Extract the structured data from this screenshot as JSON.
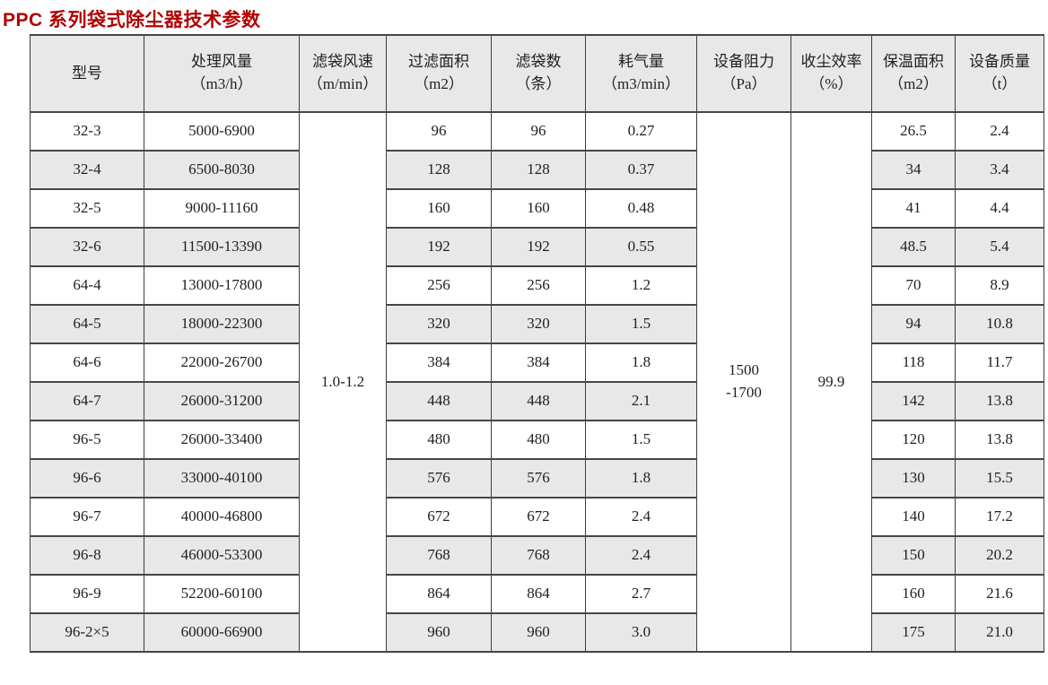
{
  "title": "PPC 系列袋式除尘器技术参数",
  "table": {
    "headers": [
      {
        "line1": "型号",
        "line2": ""
      },
      {
        "line1": "处理风量",
        "line2": "（m3/h）"
      },
      {
        "line1": "滤袋风速",
        "line2": "（m/min）"
      },
      {
        "line1": "过滤面积",
        "line2": "（m2）"
      },
      {
        "line1": "滤袋数",
        "line2": "（条）"
      },
      {
        "line1": "耗气量",
        "line2": "（m3/min）"
      },
      {
        "line1": "设备阻力",
        "line2": "（Pa）"
      },
      {
        "line1": "收尘效率",
        "line2": "（%）"
      },
      {
        "line1": "保温面积",
        "line2": "（m2）"
      },
      {
        "line1": "设备质量",
        "line2": "（t）"
      }
    ],
    "merged": {
      "filter_velocity": "1.0-1.2",
      "resistance_line1": "1500",
      "resistance_line2": "-1700",
      "efficiency": "99.9"
    },
    "rows": [
      {
        "model": "32-3",
        "airflow": "5000-6900",
        "area": "96",
        "bags": "96",
        "gas": "0.27",
        "insulation": "26.5",
        "mass": "2.4"
      },
      {
        "model": "32-4",
        "airflow": "6500-8030",
        "area": "128",
        "bags": "128",
        "gas": "0.37",
        "insulation": "34",
        "mass": "3.4"
      },
      {
        "model": "32-5",
        "airflow": "9000-11160",
        "area": "160",
        "bags": "160",
        "gas": "0.48",
        "insulation": "41",
        "mass": "4.4"
      },
      {
        "model": "32-6",
        "airflow": "11500-13390",
        "area": "192",
        "bags": "192",
        "gas": "0.55",
        "insulation": "48.5",
        "mass": "5.4"
      },
      {
        "model": "64-4",
        "airflow": "13000-17800",
        "area": "256",
        "bags": "256",
        "gas": "1.2",
        "insulation": "70",
        "mass": "8.9"
      },
      {
        "model": "64-5",
        "airflow": "18000-22300",
        "area": "320",
        "bags": "320",
        "gas": "1.5",
        "insulation": "94",
        "mass": "10.8"
      },
      {
        "model": "64-6",
        "airflow": "22000-26700",
        "area": "384",
        "bags": "384",
        "gas": "1.8",
        "insulation": "118",
        "mass": "11.7"
      },
      {
        "model": "64-7",
        "airflow": "26000-31200",
        "area": "448",
        "bags": "448",
        "gas": "2.1",
        "insulation": "142",
        "mass": "13.8"
      },
      {
        "model": "96-5",
        "airflow": "26000-33400",
        "area": "480",
        "bags": "480",
        "gas": "1.5",
        "insulation": "120",
        "mass": "13.8"
      },
      {
        "model": "96-6",
        "airflow": "33000-40100",
        "area": "576",
        "bags": "576",
        "gas": "1.8",
        "insulation": "130",
        "mass": "15.5"
      },
      {
        "model": "96-7",
        "airflow": "40000-46800",
        "area": "672",
        "bags": "672",
        "gas": "2.4",
        "insulation": "140",
        "mass": "17.2"
      },
      {
        "model": "96-8",
        "airflow": "46000-53300",
        "area": "768",
        "bags": "768",
        "gas": "2.4",
        "insulation": "150",
        "mass": "20.2"
      },
      {
        "model": "96-9",
        "airflow": "52200-60100",
        "area": "864",
        "bags": "864",
        "gas": "2.7",
        "insulation": "160",
        "mass": "21.6"
      },
      {
        "model": "96-2×5",
        "airflow": "60000-66900",
        "area": "960",
        "bags": "960",
        "gas": "3.0",
        "insulation": "175",
        "mass": "21.0"
      }
    ],
    "colors": {
      "title_red": "#b20000",
      "header_gray": "#e8e8e8",
      "stripe_gray": "#e8e8e8",
      "border_dark": "#3d3d3d"
    }
  }
}
